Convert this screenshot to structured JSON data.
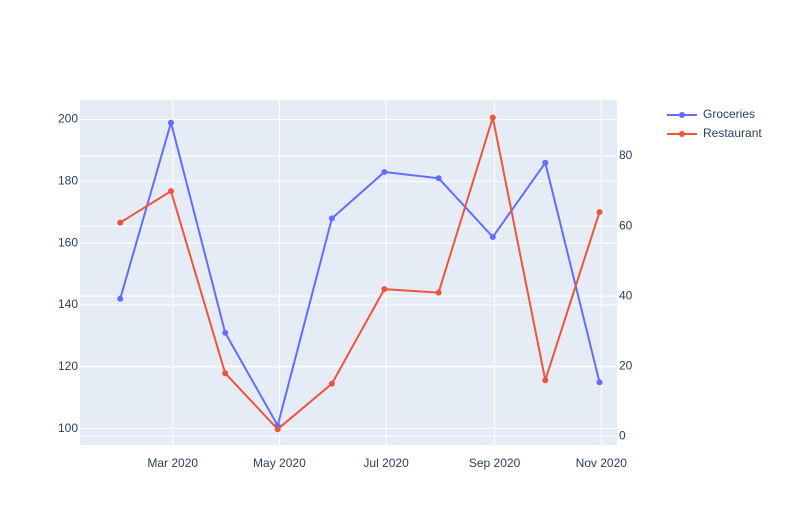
{
  "chart_data": {
    "type": "line",
    "x": [
      "2020-01-31",
      "2020-02-29",
      "2020-03-31",
      "2020-04-30",
      "2020-05-31",
      "2020-06-30",
      "2020-07-31",
      "2020-08-31",
      "2020-09-30",
      "2020-10-31"
    ],
    "series": [
      {
        "name": "Groceries",
        "axis": "left",
        "color": "#636efa",
        "values": [
          142,
          199,
          131,
          101,
          168,
          183,
          181,
          162,
          186,
          115
        ]
      },
      {
        "name": "Restaurant",
        "axis": "right",
        "color": "#ef553b",
        "values": [
          61,
          70,
          18,
          2,
          15,
          42,
          41,
          91,
          16,
          64
        ]
      }
    ],
    "x_ticks": [
      {
        "date": "2020-03-01",
        "label": "Mar 2020"
      },
      {
        "date": "2020-05-01",
        "label": "May 2020"
      },
      {
        "date": "2020-07-01",
        "label": "Jul 2020"
      },
      {
        "date": "2020-09-01",
        "label": "Sep 2020"
      },
      {
        "date": "2020-11-01",
        "label": "Nov 2020"
      }
    ],
    "xlim": [
      "2020-01-08",
      "2020-11-10"
    ],
    "y_left": {
      "ylim": [
        94.7,
        206.3
      ],
      "ticks": [
        100,
        120,
        140,
        160,
        180,
        200
      ]
    },
    "y_right": {
      "ylim": [
        -2.5,
        96
      ],
      "ticks": [
        0,
        20,
        40,
        60,
        80
      ]
    },
    "grid": true,
    "legend_position": "top-right",
    "plot_background": "#e5ecf6",
    "title": "",
    "xlabel": "",
    "ylabel": ""
  }
}
